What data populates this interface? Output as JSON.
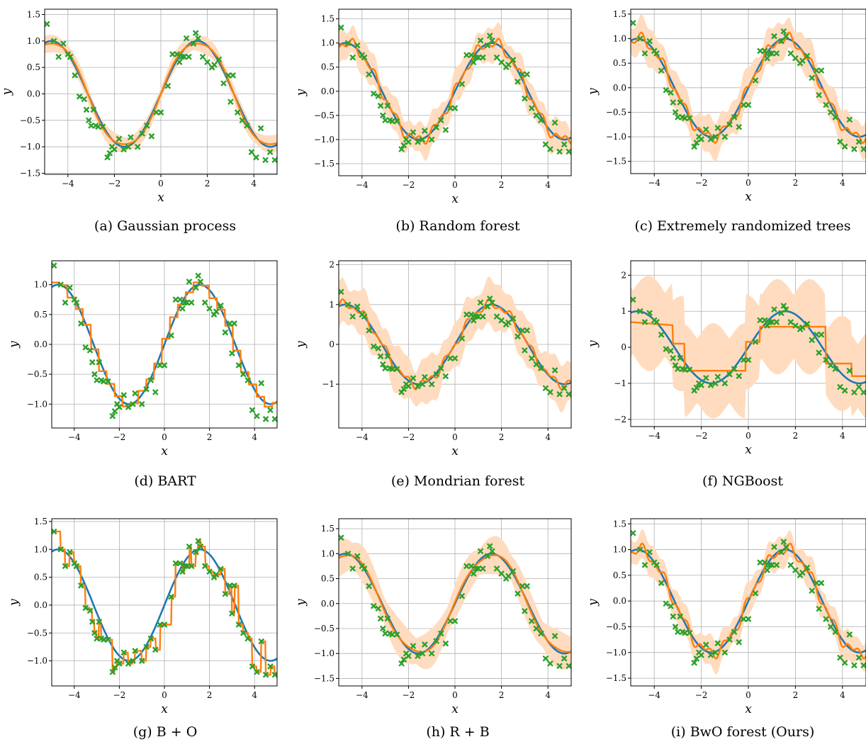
{
  "figure": {
    "colors": {
      "truth": "#1f77b4",
      "pred": "#ff7f0e",
      "band": "#ffdcbf",
      "obs": "#2ca02c",
      "grid": "#b0b0b0"
    },
    "captions": [
      "(a) Gaussian process",
      "(b) Random forest",
      "(c) Extremely randomized trees",
      "(d) BART",
      "(e) Mondrian forest",
      "(f) NGBoost",
      "(g) B + O",
      "(h) R + B",
      "(i) BwO forest (Ours)"
    ]
  },
  "chart_data": [
    {
      "type": "line",
      "xlabel": "x",
      "ylabel": "y",
      "xlim": [
        -5,
        5
      ],
      "ylim": [
        -1.52,
        1.6
      ],
      "xticks": [
        -4,
        -2,
        0,
        2,
        4
      ],
      "yticks": [
        -1.5,
        -1.0,
        -0.5,
        0.0,
        0.5,
        1.0,
        1.5
      ],
      "ytick_labels": [
        "−1.5",
        "−1.0",
        "−0.5",
        "0.0",
        "0.5",
        "1.0",
        "1.5"
      ],
      "grid": true,
      "method": "smooth",
      "band_width": 0.14
    },
    {
      "type": "line",
      "xlabel": "x",
      "ylabel": "y",
      "xlim": [
        -5,
        5
      ],
      "ylim": [
        -1.75,
        1.7
      ],
      "xticks": [
        -4,
        -2,
        0,
        2,
        4
      ],
      "yticks": [
        -1.5,
        -1.0,
        -0.5,
        0.0,
        0.5,
        1.0,
        1.5
      ],
      "ytick_labels": [
        "−1.5",
        "−1.0",
        "−0.5",
        "0.0",
        "0.5",
        "1.0",
        "1.5"
      ],
      "grid": true,
      "method": "noisy",
      "band_width": 0.3
    },
    {
      "type": "line",
      "xlabel": "x",
      "ylabel": "y",
      "xlim": [
        -5,
        5
      ],
      "ylim": [
        -1.75,
        1.6
      ],
      "xticks": [
        -4,
        -2,
        0,
        2,
        4
      ],
      "yticks": [
        -1.5,
        -1.0,
        -0.5,
        0.0,
        0.5,
        1.0,
        1.5
      ],
      "ytick_labels": [
        "−1.5",
        "−1.0",
        "−0.5",
        "0.0",
        "0.5",
        "1.0",
        "1.5"
      ],
      "grid": true,
      "method": "noisy",
      "band_width": 0.33
    },
    {
      "type": "line",
      "xlabel": "x",
      "ylabel": "y",
      "xlim": [
        -5,
        5
      ],
      "ylim": [
        -1.4,
        1.4
      ],
      "xticks": [
        -4,
        -2,
        0,
        2,
        4
      ],
      "yticks": [
        -1.0,
        -0.5,
        0.0,
        0.5,
        1.0
      ],
      "ytick_labels": [
        "−1.0",
        "−0.5",
        "0.0",
        "0.5",
        "1.0"
      ],
      "grid": true,
      "method": "step",
      "band_width": 0
    },
    {
      "type": "line",
      "xlabel": "x",
      "ylabel": "y",
      "xlim": [
        -5,
        5
      ],
      "ylim": [
        -2.1,
        2.1
      ],
      "xticks": [
        -4,
        -2,
        0,
        2,
        4
      ],
      "yticks": [
        -1,
        0,
        1,
        2
      ],
      "ytick_labels": [
        "−1",
        "0",
        "1",
        "2"
      ],
      "grid": true,
      "method": "noisy",
      "band_width": 0.5
    },
    {
      "type": "line",
      "xlabel": "x",
      "ylabel": "y",
      "xlim": [
        -5,
        5
      ],
      "ylim": [
        -2.2,
        2.4
      ],
      "xticks": [
        -4,
        -2,
        0,
        2,
        4
      ],
      "yticks": [
        -2,
        -1,
        0,
        1,
        2
      ],
      "ytick_labels": [
        "−2",
        "−1",
        "0",
        "1",
        "2"
      ],
      "grid": true,
      "method": "coarse",
      "band_width": 1.1
    },
    {
      "type": "line",
      "xlabel": "x",
      "ylabel": "y",
      "xlim": [
        -5,
        5
      ],
      "ylim": [
        -1.45,
        1.55
      ],
      "xticks": [
        -4,
        -2,
        0,
        2,
        4
      ],
      "yticks": [
        -1.0,
        -0.5,
        0.0,
        0.5,
        1.0,
        1.5
      ],
      "ytick_labels": [
        "−1.0",
        "−0.5",
        "0.0",
        "0.5",
        "1.0",
        "1.5"
      ],
      "grid": true,
      "method": "interp",
      "band_width": 0
    },
    {
      "type": "line",
      "xlabel": "x",
      "ylabel": "y",
      "xlim": [
        -5,
        5
      ],
      "ylim": [
        -1.65,
        1.7
      ],
      "xticks": [
        -4,
        -2,
        0,
        2,
        4
      ],
      "yticks": [
        -1.5,
        -1.0,
        -0.5,
        0.0,
        0.5,
        1.0,
        1.5
      ],
      "ytick_labels": [
        "−1.5",
        "−1.0",
        "−0.5",
        "0.0",
        "0.5",
        "1.0",
        "1.5"
      ],
      "grid": true,
      "method": "smooth",
      "band_width": 0.32
    },
    {
      "type": "line",
      "xlabel": "x",
      "ylabel": "y",
      "xlim": [
        -5,
        5
      ],
      "ylim": [
        -1.65,
        1.6
      ],
      "xticks": [
        -4,
        -2,
        0,
        2,
        4
      ],
      "yticks": [
        -1.5,
        -1.0,
        -0.5,
        0.0,
        0.5,
        1.0,
        1.5
      ],
      "ytick_labels": [
        "−1.5",
        "−1.0",
        "−0.5",
        "0.0",
        "0.5",
        "1.0",
        "1.5"
      ],
      "grid": true,
      "method": "noisy",
      "band_width": 0.26
    }
  ],
  "observations": {
    "x": [
      -4.9,
      -4.6,
      -4.4,
      -4.2,
      -4.0,
      -3.9,
      -3.7,
      -3.5,
      -3.3,
      -3.2,
      -3.1,
      -3.0,
      -2.9,
      -2.8,
      -2.7,
      -2.5,
      -2.3,
      -2.2,
      -2.1,
      -2.0,
      -1.8,
      -1.6,
      -1.4,
      -1.3,
      -1.0,
      -0.8,
      -0.6,
      -0.4,
      -0.2,
      0.0,
      0.3,
      0.5,
      0.7,
      0.8,
      0.9,
      1.0,
      1.1,
      1.2,
      1.4,
      1.5,
      1.6,
      1.8,
      2.0,
      2.2,
      2.3,
      2.5,
      2.7,
      2.9,
      3.0,
      3.1,
      3.3,
      3.5,
      3.7,
      3.9,
      4.1,
      4.3,
      4.5,
      4.7,
      4.9
    ],
    "y": [
      1.32,
      1.0,
      0.7,
      0.95,
      0.75,
      0.7,
      0.35,
      -0.05,
      -0.1,
      -0.3,
      -0.5,
      -0.6,
      -0.3,
      -0.6,
      -0.62,
      -0.62,
      -1.2,
      -1.12,
      -1.0,
      -1.05,
      -0.85,
      -1.05,
      -1.0,
      -0.82,
      -1.0,
      -0.75,
      -0.6,
      -0.8,
      -0.35,
      -0.35,
      0.15,
      0.75,
      0.75,
      0.6,
      0.7,
      0.7,
      1.05,
      0.7,
      0.95,
      1.15,
      1.05,
      0.7,
      0.6,
      0.5,
      0.55,
      0.65,
      0.2,
      0.35,
      -0.15,
      0.35,
      -0.35,
      -0.5,
      -0.6,
      -1.1,
      -1.2,
      -0.65,
      -1.25,
      -1.1,
      -1.25
    ]
  }
}
